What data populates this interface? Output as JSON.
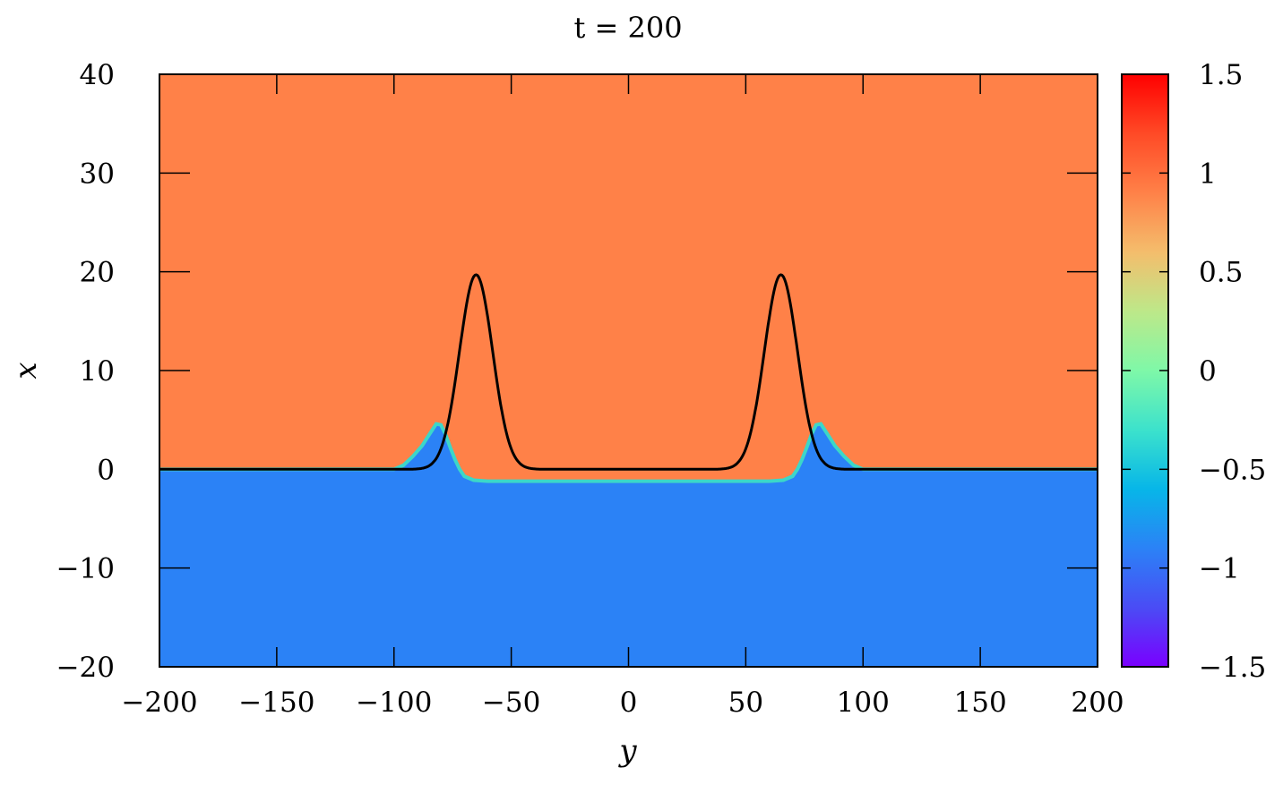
{
  "chart_data": {
    "type": "heatmap",
    "title": "t = 200",
    "xlabel": "y",
    "ylabel": "x",
    "xlim": [
      -200,
      200
    ],
    "ylim": [
      -20,
      40
    ],
    "x_ticks": [
      -200,
      -150,
      -100,
      -50,
      0,
      50,
      100,
      150,
      200
    ],
    "x_tick_labels": [
      "−200",
      "−150",
      "−100",
      "−50",
      "0",
      "50",
      "100",
      "150",
      "200"
    ],
    "y_ticks": [
      -20,
      -10,
      0,
      10,
      20,
      30,
      40
    ],
    "y_tick_labels": [
      "−20",
      "−10",
      "0",
      "10",
      "20",
      "30",
      "40"
    ],
    "grid": false,
    "colorbar": {
      "range": [
        -1.5,
        1.5
      ],
      "ticks": [
        -1.5,
        -1,
        -0.5,
        0,
        0.5,
        1,
        1.5
      ],
      "tick_labels": [
        "−1.5",
        "−1",
        "−0.5",
        "0",
        "0.5",
        "1",
        "1.5"
      ],
      "colormap": "rainbow"
    },
    "regions": {
      "upper_value": 0.95,
      "lower_value": -0.95,
      "upper_color": "#ff8148",
      "lower_color": "#2b82f6",
      "interface_color": "#3cd7c8"
    },
    "field_boundary": [
      [
        -200,
        0
      ],
      [
        -100,
        0
      ],
      [
        -96,
        0.4
      ],
      [
        -92,
        1.3
      ],
      [
        -88,
        2.4
      ],
      [
        -85,
        3.5
      ],
      [
        -82,
        4.6
      ],
      [
        -80,
        4.5
      ],
      [
        -78,
        3.5
      ],
      [
        -76,
        2.2
      ],
      [
        -74,
        1.0
      ],
      [
        -72,
        0.0
      ],
      [
        -70,
        -0.7
      ],
      [
        -66,
        -1.1
      ],
      [
        -60,
        -1.2
      ],
      [
        0,
        -1.2
      ],
      [
        60,
        -1.2
      ],
      [
        66,
        -1.1
      ],
      [
        70,
        -0.7
      ],
      [
        72,
        0.0
      ],
      [
        74,
        1.0
      ],
      [
        76,
        2.2
      ],
      [
        78,
        3.5
      ],
      [
        80,
        4.5
      ],
      [
        82,
        4.6
      ],
      [
        85,
        3.5
      ],
      [
        88,
        2.4
      ],
      [
        92,
        1.3
      ],
      [
        96,
        0.4
      ],
      [
        100,
        0
      ],
      [
        200,
        0
      ]
    ],
    "curve": {
      "color": "#000000",
      "pulses": [
        {
          "center": -65,
          "amplitude": 19.7,
          "width": 10
        },
        {
          "center": 65,
          "amplitude": 19.7,
          "width": 10
        }
      ]
    }
  }
}
